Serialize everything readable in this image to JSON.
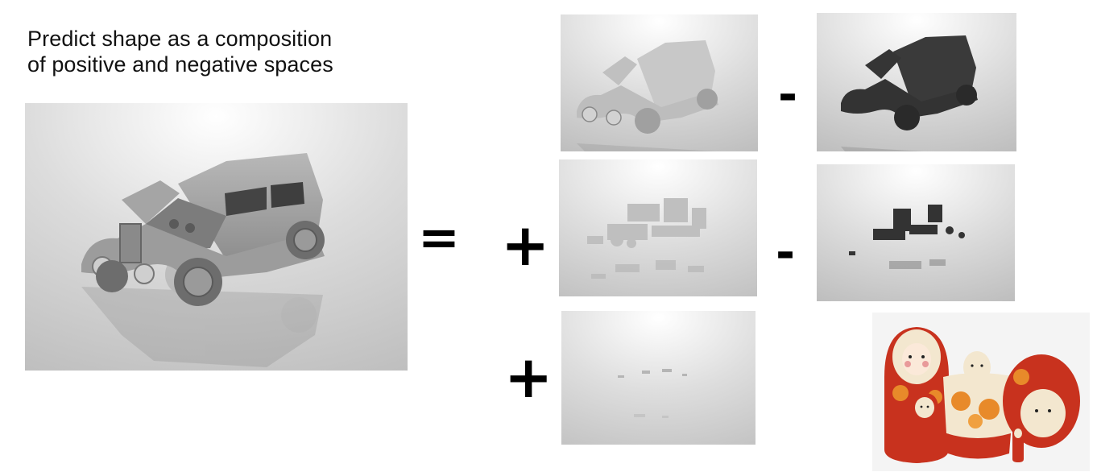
{
  "title": {
    "line1": "Predict shape as a composition",
    "line2": "of positive and negative spaces"
  },
  "operators": {
    "equals": "=",
    "plus_1": "+",
    "minus_1": "-",
    "minus_2": "-",
    "plus_2": "+"
  },
  "colors": {
    "background": "#ffffff",
    "render_gray": "#a9a9a9",
    "negative_dark": "#3a3a3a",
    "doll_red": "#c8321e",
    "doll_cream": "#f3e7cf",
    "doll_orange": "#e88a2a"
  },
  "images": {
    "target_shape": "grayscale-render-vintage-car-full",
    "positive_1": "grayscale-render-vintage-car-body",
    "negative_1": "dark-render-car-subtracted-volume",
    "positive_2": "faint-render-engine-details",
    "negative_2": "dark-render-small-fragments",
    "positive_3": "faint-render-residual-specks",
    "analogy": "photo-matryoshka-nesting-dolls"
  }
}
